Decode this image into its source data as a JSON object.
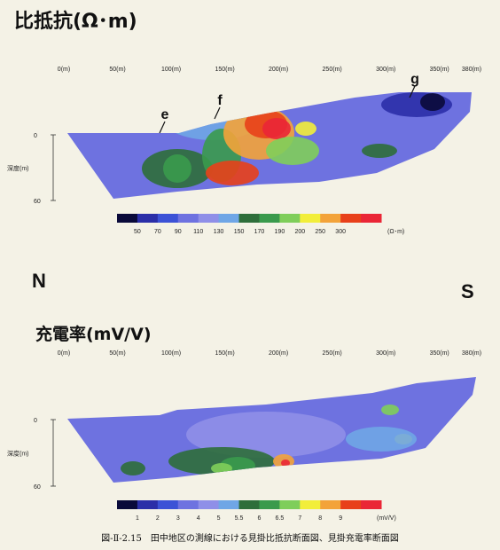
{
  "caption": "図-Ⅱ-2.15　田中地区の測線における見掛比抵抗断面図、見掛充電率断面図",
  "labels": {
    "north": "N",
    "south": "S"
  },
  "colors": {
    "ramp": [
      "#0a0a3a",
      "#2b2fa8",
      "#3c52d6",
      "#6e72e0",
      "#8f8fe8",
      "#6fa6e6",
      "#2e6e3a",
      "#3a9a4c",
      "#7fce5a",
      "#f2ee3a",
      "#f3a33a",
      "#e8401a",
      "#ea2636"
    ],
    "background": "#f4f2e6"
  },
  "chart_data": [
    {
      "type": "heatmap",
      "title": "比抵抗(Ω･m)",
      "xlabel": "",
      "ylabel": "深度(m)",
      "x_ticks": [
        "0(m)",
        "50(m)",
        "100(m)",
        "150(m)",
        "200(m)",
        "250(m)",
        "300(m)",
        "350(m)",
        "380(m)"
      ],
      "x_values": [
        0,
        50,
        100,
        150,
        200,
        250,
        300,
        350,
        380
      ],
      "y_ticks": [
        "0",
        "60"
      ],
      "y_values": [
        0,
        60
      ],
      "xlim": [
        0,
        380
      ],
      "colorbar": {
        "values": [
          "50",
          "70",
          "90",
          "110",
          "130",
          "150",
          "170",
          "190",
          "200",
          "250",
          "300"
        ],
        "unit": "(Ω･m)"
      },
      "annotations": [
        "e",
        "f",
        "g"
      ]
    },
    {
      "type": "heatmap",
      "title": "充電率(mV/V)",
      "xlabel": "",
      "ylabel": "深度(m)",
      "x_ticks": [
        "0(m)",
        "50(m)",
        "100(m)",
        "150(m)",
        "200(m)",
        "250(m)",
        "300(m)",
        "350(m)",
        "380(m)"
      ],
      "x_values": [
        0,
        50,
        100,
        150,
        200,
        250,
        300,
        350,
        380
      ],
      "y_ticks": [
        "0",
        "60"
      ],
      "y_values": [
        0,
        60
      ],
      "xlim": [
        0,
        380
      ],
      "colorbar": {
        "values": [
          "1",
          "2",
          "3",
          "4",
          "5",
          "5.5",
          "6",
          "6.5",
          "7",
          "8",
          "9"
        ],
        "unit": "(mV/V)"
      },
      "annotations": []
    }
  ]
}
